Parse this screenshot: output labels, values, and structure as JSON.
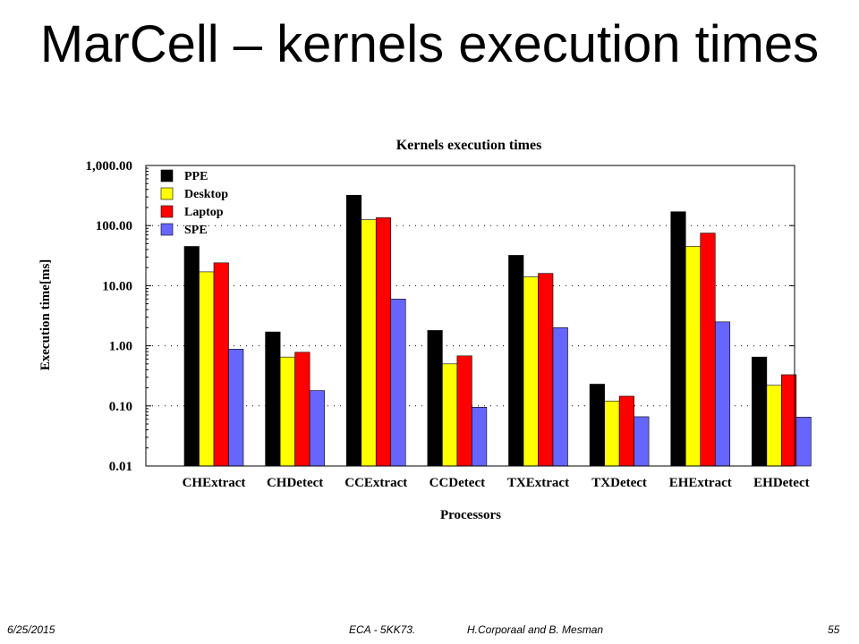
{
  "slide": {
    "title": "MarCell – kernels execution times"
  },
  "footer": {
    "date": "6/25/2015",
    "course": "ECA - 5KK73.",
    "authors": "H.Corporaal  and B. Mesman",
    "page": "55"
  },
  "chart_data": {
    "type": "bar",
    "title": "Kernels execution times",
    "xlabel": "Processors",
    "ylabel": "Execution time[ms]",
    "yscale": "log",
    "ylim": [
      0.01,
      1000
    ],
    "ytick_values": [
      0.01,
      0.1,
      1,
      10,
      100,
      1000
    ],
    "ytick_labels": [
      "0.01",
      "0.10",
      "1.00",
      "10.00",
      "100.00",
      "1,000.00"
    ],
    "grid": "horizontal dotted",
    "legend_position": "top-left",
    "categories": [
      "CHExtract",
      "CHDetect",
      "CCExtract",
      "CCDetect",
      "TXExtract",
      "TXDetect",
      "EHExtract",
      "EHDetect"
    ],
    "series": [
      {
        "name": "PPE",
        "color": "#000000",
        "values": [
          45,
          1.7,
          320,
          1.8,
          32,
          0.23,
          170,
          0.65
        ]
      },
      {
        "name": "Desktop",
        "color": "#ffff00",
        "values": [
          17,
          0.65,
          125,
          0.5,
          14,
          0.12,
          45,
          0.22
        ]
      },
      {
        "name": "Laptop",
        "color": "#ff0000",
        "values": [
          24,
          0.78,
          135,
          0.68,
          16,
          0.145,
          75,
          0.33
        ]
      },
      {
        "name": "SPE",
        "color": "#6666ff",
        "values": [
          0.88,
          0.18,
          6,
          0.095,
          2,
          0.066,
          2.5,
          0.065
        ]
      }
    ]
  }
}
